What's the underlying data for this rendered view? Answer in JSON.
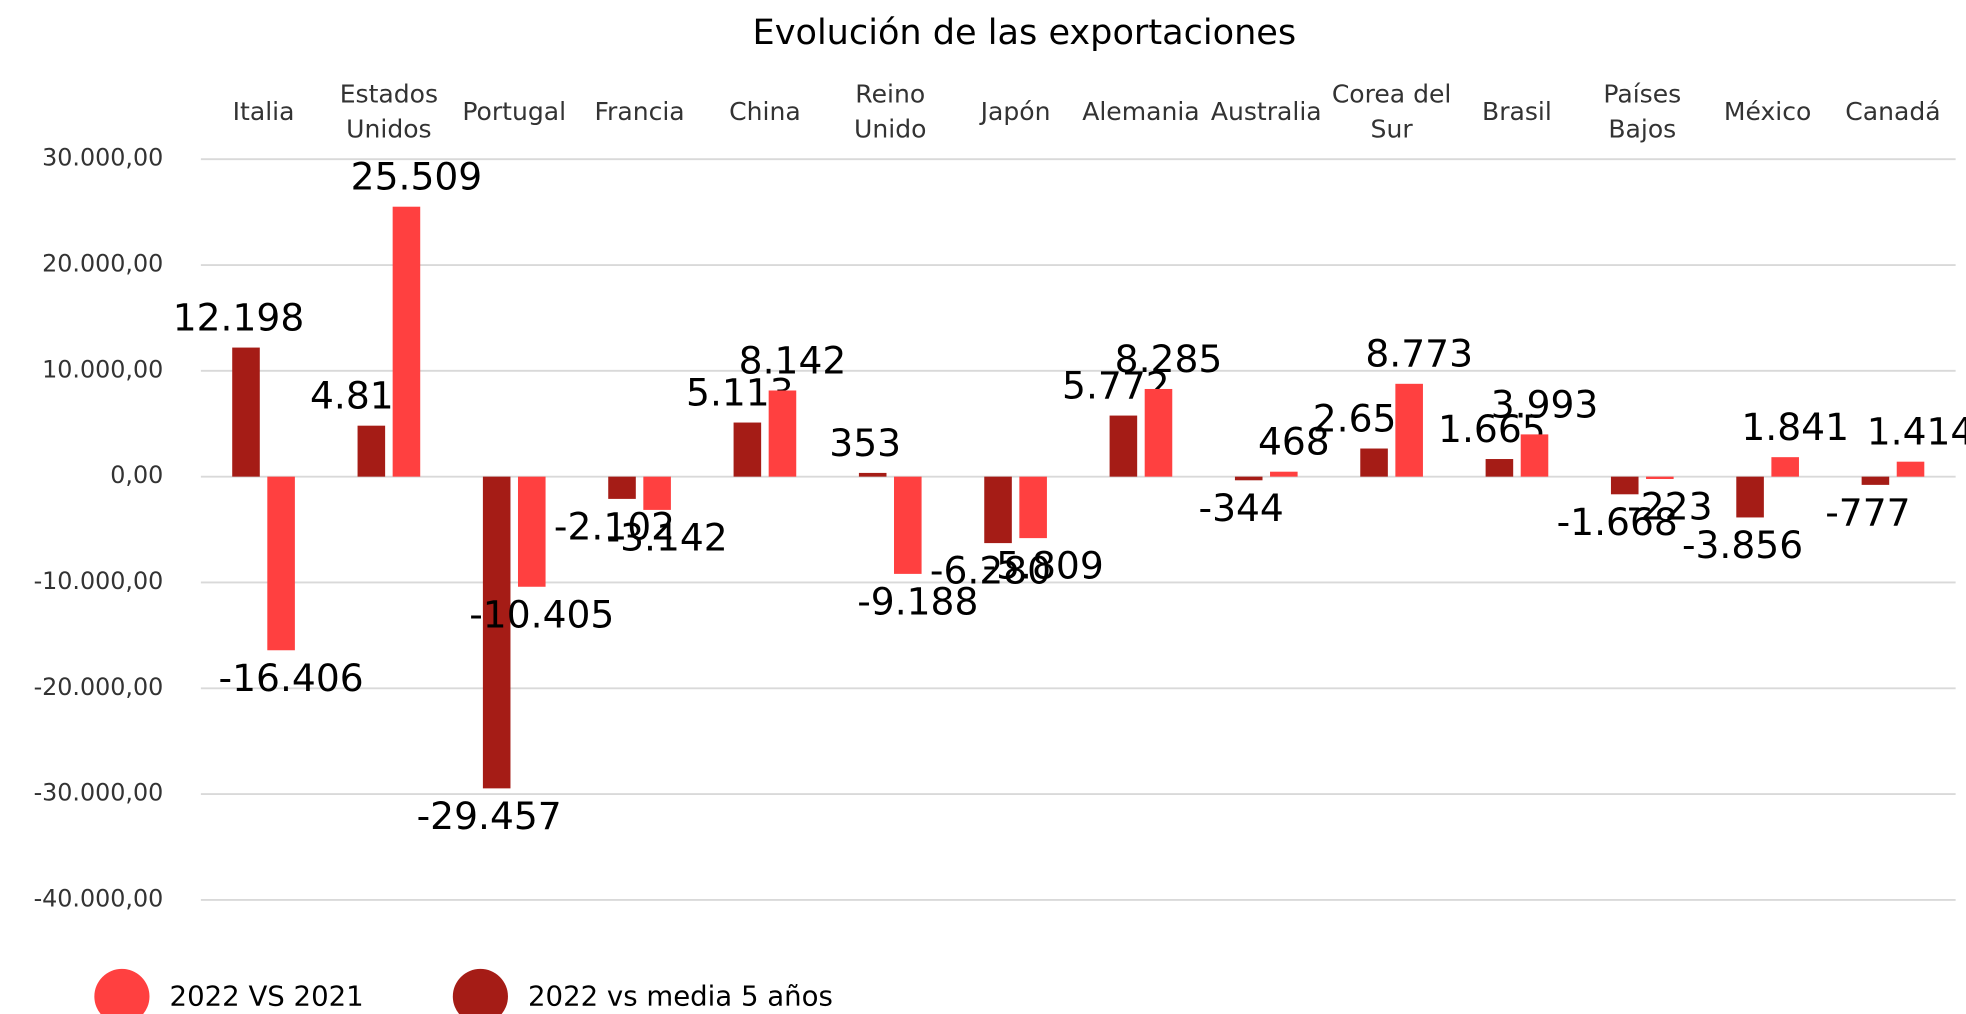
{
  "chart_data": {
    "type": "bar",
    "title": "Evolución de las exportaciones",
    "categories": [
      "Italia",
      "Estados Unidos",
      "Portugal",
      "Francia",
      "China",
      "Reino Unido",
      "Japón",
      "Alemania",
      "Australia",
      "Corea del Sur",
      "Brasil",
      "Países Bajos",
      "México",
      "Canadá"
    ],
    "series": [
      {
        "name": "2022 vs media 5 años",
        "color": "#a51c16",
        "values": [
          12198,
          4817,
          -29457,
          -2102,
          5113,
          353,
          -6280,
          5772,
          -344,
          2658,
          1665,
          -1668,
          -3856,
          -777
        ],
        "value_labels": [
          "12.198",
          "4.817",
          "-29.457",
          "-2.102",
          "5.113",
          "353",
          "-6.280",
          "5.772",
          "-344",
          "2.658",
          "1.665",
          "-1.668",
          "-3.856",
          "-777"
        ]
      },
      {
        "name": "2022 VS 2021",
        "color": "#ff4040",
        "values": [
          -16406,
          25509,
          -10405,
          -3142,
          8142,
          -9188,
          -5809,
          8285,
          468,
          8773,
          3993,
          -223,
          1841,
          1414
        ],
        "value_labels": [
          "-16.406",
          "25.509",
          "-10.405",
          "-3.142",
          "8.142",
          "-9.188",
          "-5.809",
          "8.285",
          "468",
          "8.773",
          "3.993",
          "-223",
          "1.841",
          "1.414"
        ]
      }
    ],
    "legend_series_order": [
      1,
      0
    ],
    "ylim": [
      -40000,
      30000
    ],
    "yticks": [
      {
        "value": -40000,
        "label": "-40.000,00"
      },
      {
        "value": -30000,
        "label": "-30.000,00"
      },
      {
        "value": -20000,
        "label": "-20.000,00"
      },
      {
        "value": -10000,
        "label": "-10.000,00"
      },
      {
        "value": 0,
        "label": "0,00"
      },
      {
        "value": 10000,
        "label": "10.000,00"
      },
      {
        "value": 20000,
        "label": "20.000,00"
      },
      {
        "value": 30000,
        "label": "30.000,00"
      }
    ],
    "grid": true
  }
}
